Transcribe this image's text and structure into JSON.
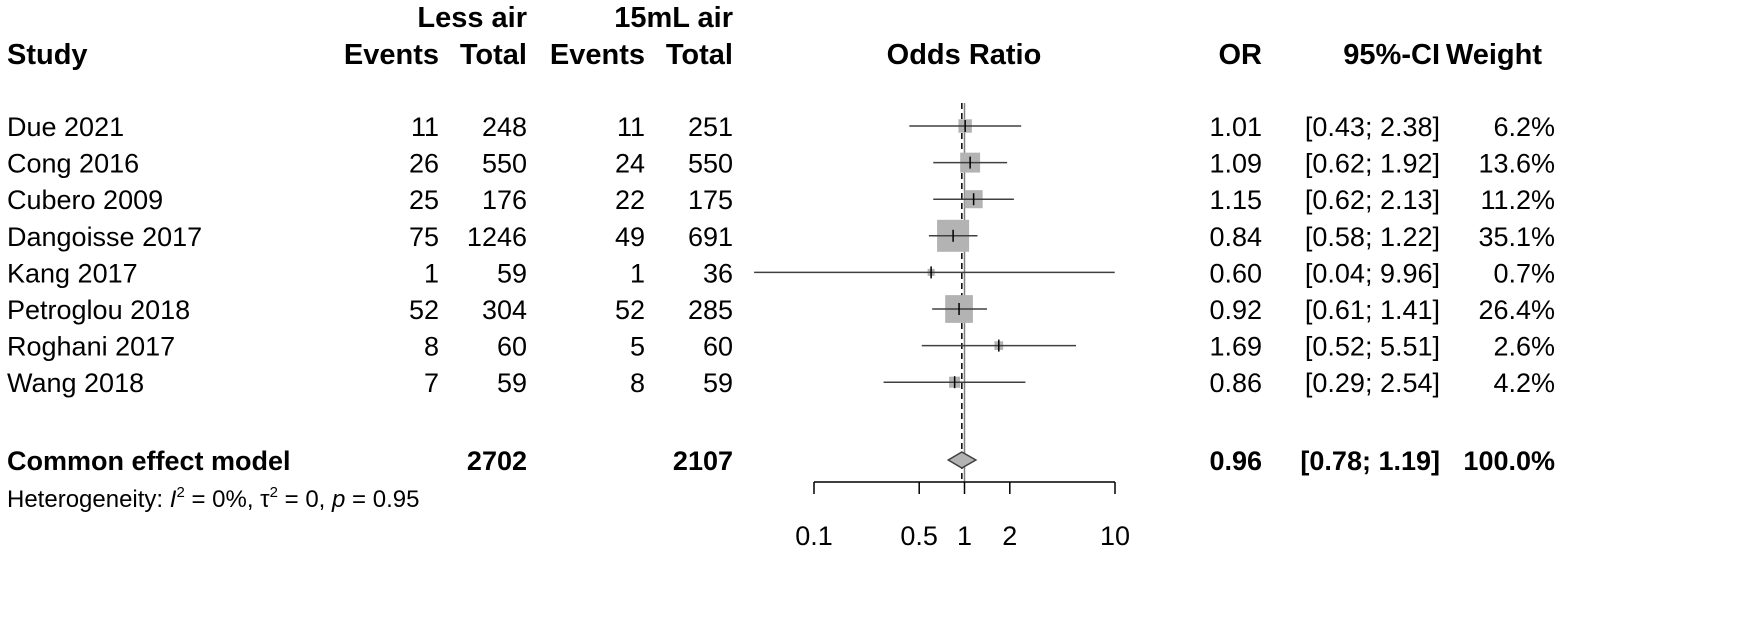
{
  "header": {
    "group1": "Less air",
    "group2": "15mL air",
    "study": "Study",
    "events1": "Events",
    "total1": "Total",
    "events2": "Events",
    "total2": "Total",
    "plot_title": "Odds Ratio",
    "or": "OR",
    "ci": "95%-CI",
    "weight": "Weight"
  },
  "studies": [
    {
      "name": "Due 2021",
      "events1": "11",
      "total1": "248",
      "events2": "11",
      "total2": "251",
      "or_text": "1.01",
      "ci_text": "[0.43; 2.38]",
      "weight_text": "6.2%"
    },
    {
      "name": "Cong 2016",
      "events1": "26",
      "total1": "550",
      "events2": "24",
      "total2": "550",
      "or_text": "1.09",
      "ci_text": "[0.62; 1.92]",
      "weight_text": "13.6%"
    },
    {
      "name": "Cubero 2009",
      "events1": "25",
      "total1": "176",
      "events2": "22",
      "total2": "175",
      "or_text": "1.15",
      "ci_text": "[0.62; 2.13]",
      "weight_text": "11.2%"
    },
    {
      "name": "Dangoisse 2017",
      "events1": "75",
      "total1": "1246",
      "events2": "49",
      "total2": "691",
      "or_text": "0.84",
      "ci_text": "[0.58; 1.22]",
      "weight_text": "35.1%"
    },
    {
      "name": "Kang 2017",
      "events1": "1",
      "total1": "59",
      "events2": "1",
      "total2": "36",
      "or_text": "0.60",
      "ci_text": "[0.04; 9.96]",
      "weight_text": "0.7%"
    },
    {
      "name": "Petroglou 2018",
      "events1": "52",
      "total1": "304",
      "events2": "52",
      "total2": "285",
      "or_text": "0.92",
      "ci_text": "[0.61; 1.41]",
      "weight_text": "26.4%"
    },
    {
      "name": "Roghani 2017",
      "events1": "8",
      "total1": "60",
      "events2": "5",
      "total2": "60",
      "or_text": "1.69",
      "ci_text": "[0.52; 5.51]",
      "weight_text": "2.6%"
    },
    {
      "name": "Wang 2018",
      "events1": "7",
      "total1": "59",
      "events2": "8",
      "total2": "59",
      "or_text": "0.86",
      "ci_text": "[0.29; 2.54]",
      "weight_text": "4.2%"
    }
  ],
  "summary": {
    "name": "Common effect model",
    "total1": "2702",
    "total2": "2107",
    "or_text": "0.96",
    "ci_text": "[0.78; 1.19]",
    "weight_text": "100.0%"
  },
  "heterogeneity": {
    "prefix": "Heterogeneity: ",
    "i2_symbol": "I",
    "i2_value": " = 0%, ",
    "tau2_symbol": "τ",
    "tau2_value": " = 0, ",
    "p_symbol": "p",
    "p_value": " = 0.95",
    "superscript": "2"
  },
  "chart_data": {
    "type": "forest",
    "x_scale": "log",
    "x_ticks": [
      0.1,
      0.5,
      1,
      2,
      10
    ],
    "x_tick_labels": [
      "0.1",
      "0.5",
      "1",
      "2",
      "10"
    ],
    "reference_line": 1,
    "summary_line": 0.96,
    "points": [
      {
        "or": 1.01,
        "lower": 0.43,
        "upper": 2.38,
        "weight": 6.2
      },
      {
        "or": 1.09,
        "lower": 0.62,
        "upper": 1.92,
        "weight": 13.6
      },
      {
        "or": 1.15,
        "lower": 0.62,
        "upper": 2.13,
        "weight": 11.2
      },
      {
        "or": 0.84,
        "lower": 0.58,
        "upper": 1.22,
        "weight": 35.1
      },
      {
        "or": 0.6,
        "lower": 0.04,
        "upper": 9.96,
        "weight": 0.7
      },
      {
        "or": 0.92,
        "lower": 0.61,
        "upper": 1.41,
        "weight": 26.4
      },
      {
        "or": 1.69,
        "lower": 0.52,
        "upper": 5.51,
        "weight": 2.6
      },
      {
        "or": 0.86,
        "lower": 0.29,
        "upper": 2.54,
        "weight": 4.2
      }
    ],
    "summary": {
      "or": 0.96,
      "lower": 0.78,
      "upper": 1.19
    },
    "colors": {
      "box": "#b3b3b3",
      "diamond": "#b3b3b3",
      "line": "#404040"
    }
  }
}
